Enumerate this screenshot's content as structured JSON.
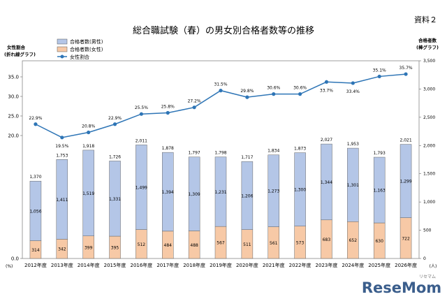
{
  "doc_label": "資料２",
  "watermark": "ReseMom",
  "watermark_small": "リセマム",
  "chart_data": {
    "type": "bar",
    "title": "総合職試験（春）の男女別合格者数等の推移",
    "left_axis_label": [
      "女性割合",
      "(折れ線グラフ)"
    ],
    "left_axis_unit": "(%)",
    "right_axis_label": [
      "合格者数",
      "(棒グラフ)"
    ],
    "right_axis_unit": "(人)",
    "legend": [
      "合格者数(男性)",
      "合格者数(女性)",
      "女性割合"
    ],
    "legend_position": "top-left",
    "categories": [
      "2012年度",
      "2013年度",
      "2014年度",
      "2015年度",
      "2016年度",
      "2017年度",
      "2018年度",
      "2019年度",
      "2020年度",
      "2021年度",
      "2022年度",
      "2023年度",
      "2024年度",
      "2025年度",
      "2026年度"
    ],
    "series": [
      {
        "name": "合格者数(女性)",
        "type": "bar",
        "stack": "total",
        "color": "#f7c9a6",
        "values": [
          314,
          342,
          399,
          395,
          512,
          484,
          488,
          567,
          511,
          561,
          573,
          683,
          652,
          630,
          722
        ]
      },
      {
        "name": "合格者数(男性)",
        "type": "bar",
        "stack": "total",
        "color": "#b4c6e7",
        "values": [
          1056,
          1411,
          1519,
          1331,
          1499,
          1394,
          1309,
          1231,
          1206,
          1273,
          1300,
          1344,
          1301,
          1163,
          1299
        ]
      },
      {
        "name": "女性割合",
        "type": "line",
        "axis": "left",
        "color": "#2e75b6",
        "values": [
          22.9,
          19.5,
          20.8,
          22.9,
          25.5,
          25.8,
          27.2,
          31.5,
          29.8,
          30.6,
          30.6,
          33.7,
          33.4,
          35.1,
          35.7
        ],
        "labels": [
          "22.9%",
          "19.5%",
          "20.8%",
          "22.9%",
          "25.5%",
          "25.8%",
          "27.2%",
          "31.5%",
          "29.8%",
          "30.6%",
          "30.6%",
          "33.7%",
          "33.4%",
          "35.1%",
          "35.7%"
        ]
      }
    ],
    "totals": [
      "1,370",
      "1,753",
      "1,918",
      "1,726",
      "2,011",
      "1,878",
      "1,797",
      "1,798",
      "1,717",
      "1,834",
      "1,873",
      "2,027",
      "1,953",
      "1,793",
      "2,021"
    ],
    "male_labels": [
      "1,056",
      "1,411",
      "1,519",
      "1,331",
      "1,499",
      "1,394",
      "1,309",
      "1,231",
      "1,206",
      "1,273",
      "1,300",
      "1,344",
      "1,301",
      "1,163",
      "1,299"
    ],
    "female_labels": [
      "314",
      "342",
      "399",
      "395",
      "512",
      "484",
      "488",
      "567",
      "511",
      "561",
      "573",
      "683",
      "652",
      "630",
      "722"
    ],
    "y_left": {
      "ticks": [
        0,
        20,
        25,
        30,
        35
      ],
      "tick_labels": [
        "0.0",
        "20.0",
        "25.0",
        "30.0",
        "35.0"
      ]
    },
    "y_right": {
      "ylim": [
        0,
        3500
      ],
      "ticks": [
        0,
        500,
        1000,
        1500,
        2000,
        2500,
        3000,
        3500
      ],
      "tick_labels": [
        "0",
        "500",
        "1,000",
        "1,500",
        "2,000",
        "2,500",
        "3,000",
        "3,500"
      ]
    }
  }
}
